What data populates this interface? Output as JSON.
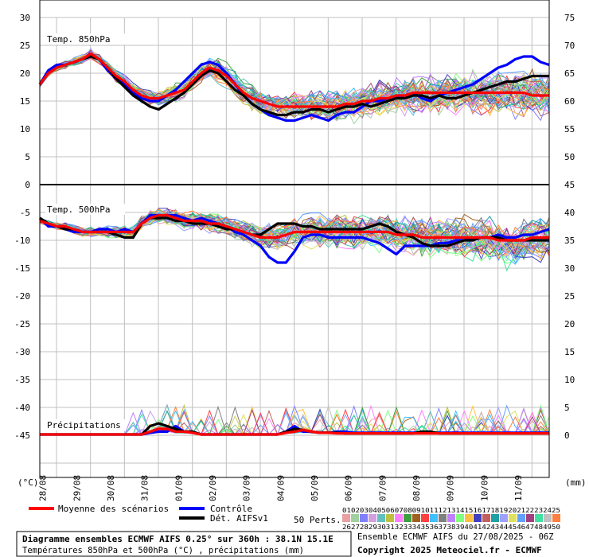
{
  "chart_data": {
    "type": "line",
    "left_axis": {
      "unit": "(°C)",
      "range": [
        -50,
        30
      ],
      "ticks": [
        "30",
        "25",
        "20",
        "15",
        "10",
        "5",
        "0",
        "-5",
        "-10",
        "-15",
        "-20",
        "-25",
        "-30",
        "-35",
        "-40",
        "-45"
      ]
    },
    "right_axis": {
      "unit": "(mm)",
      "upper_ticks": [
        "75",
        "70",
        "65",
        "60",
        "55",
        "50"
      ],
      "lower_ticks": [
        "45",
        "40",
        "35",
        "30",
        "25",
        "20",
        "15",
        "10",
        "5",
        "0"
      ]
    },
    "x_ticks": [
      "28/08",
      "29/08",
      "30/08",
      "31/08",
      "01/09",
      "02/09",
      "03/09",
      "04/09",
      "05/09",
      "06/09",
      "07/09",
      "08/09",
      "09/09",
      "10/09",
      "11/09"
    ],
    "panel_labels": {
      "t850": "Temp. 850hPa",
      "t500": "Temp. 500hPa",
      "precip": "Précipitations"
    },
    "x_hours": [
      0,
      6,
      12,
      18,
      24,
      30,
      36,
      42,
      48,
      54,
      60,
      66,
      72,
      78,
      84,
      90,
      96,
      102,
      108,
      114,
      120,
      126,
      132,
      138,
      144,
      150,
      156,
      162,
      168,
      174,
      180,
      186,
      192,
      198,
      204,
      210,
      216,
      222,
      228,
      234,
      240,
      246,
      252,
      258,
      264,
      270,
      276,
      282,
      288,
      294,
      300,
      306,
      312,
      318,
      324,
      330,
      336,
      342,
      348,
      354,
      360
    ],
    "series": [
      {
        "name": "Moyenne des scénarios",
        "panel": "t850",
        "color": "#ff0000",
        "values": [
          18,
          20,
          21,
          21.5,
          22,
          22.5,
          23.5,
          22.5,
          21,
          19.5,
          18.5,
          17,
          16,
          15.5,
          15.5,
          16,
          16.5,
          17,
          18.5,
          20,
          21,
          20.5,
          19.5,
          18,
          16.5,
          15.5,
          15,
          14.5,
          14,
          14,
          14,
          14,
          14,
          14,
          14,
          14,
          14.5,
          14.5,
          15,
          15,
          15.5,
          15.5,
          16,
          16,
          16.5,
          16.5,
          16.5,
          16.5,
          16.5,
          16.5,
          16.5,
          16.5,
          16.5,
          16.5,
          16.5,
          16.5,
          16.5,
          16.5,
          16,
          16,
          16
        ]
      },
      {
        "name": "Contrôle",
        "panel": "t850",
        "color": "#0000ff",
        "values": [
          18,
          20.5,
          21.5,
          21.5,
          22,
          22.5,
          23.5,
          22.5,
          20.5,
          19,
          18,
          16.5,
          15.5,
          15,
          15,
          16,
          17,
          18.5,
          20,
          21.5,
          22,
          21.5,
          20,
          18,
          16,
          14.5,
          13.5,
          12.5,
          12,
          11.5,
          11.5,
          12,
          12.5,
          12,
          11.5,
          12.5,
          13,
          13,
          14,
          15,
          15,
          15.5,
          15.5,
          16,
          16.5,
          15.5,
          15,
          16,
          16.5,
          17,
          17.5,
          18,
          19,
          20,
          21,
          21.5,
          22.5,
          23,
          23,
          22,
          21.5
        ]
      },
      {
        "name": "Dét. AIFSv1",
        "panel": "t850",
        "color": "#000000",
        "values": [
          18,
          20,
          21,
          21.5,
          22,
          22.5,
          23,
          22.5,
          21,
          19,
          17.5,
          16,
          15,
          14,
          13.5,
          14.5,
          15.5,
          16.5,
          18,
          19.5,
          20.5,
          20,
          18.5,
          17,
          16,
          14.5,
          13.5,
          13,
          12.5,
          12.5,
          13,
          13,
          13.5,
          13.5,
          13,
          13.5,
          14,
          14,
          14.5,
          14,
          14.5,
          15,
          15.5,
          15.5,
          16,
          16,
          15.5,
          16,
          15.5,
          15.5,
          16,
          16.5,
          17,
          17.5,
          18,
          18.5,
          18.5,
          19,
          19.5,
          19.5,
          19.5
        ]
      },
      {
        "name": "Moyenne des scénarios",
        "panel": "t500",
        "color": "#ff0000",
        "values": [
          -6.5,
          -7,
          -7.5,
          -7.5,
          -8,
          -8.5,
          -8.5,
          -8.5,
          -8.5,
          -8.5,
          -8.5,
          -8.5,
          -7,
          -6,
          -5.5,
          -5.5,
          -6,
          -6.5,
          -6.5,
          -6.5,
          -7,
          -7,
          -7.5,
          -8,
          -8.5,
          -9,
          -9.5,
          -9.5,
          -9.5,
          -9,
          -8.5,
          -8.5,
          -8.5,
          -8.5,
          -8.5,
          -8.5,
          -8.5,
          -8.5,
          -8.5,
          -8.5,
          -8.5,
          -8.5,
          -9,
          -9,
          -9,
          -9.5,
          -9.5,
          -9.5,
          -9.5,
          -9.5,
          -9.5,
          -9.5,
          -9.5,
          -9.5,
          -10,
          -10,
          -10,
          -10,
          -9.5,
          -9.5,
          -9.5
        ]
      },
      {
        "name": "Contrôle",
        "panel": "t500",
        "color": "#0000ff",
        "values": [
          -6,
          -7.5,
          -7.5,
          -8,
          -8.5,
          -8.5,
          -8.5,
          -8,
          -8,
          -8.5,
          -8,
          -8.5,
          -7,
          -5.5,
          -5.5,
          -5.5,
          -5.5,
          -6,
          -6.5,
          -6,
          -6.5,
          -7,
          -7.5,
          -8.5,
          -9,
          -10,
          -11,
          -13,
          -14,
          -14,
          -12,
          -9.5,
          -9,
          -9,
          -9.5,
          -9.5,
          -9.5,
          -9.5,
          -9.5,
          -10,
          -10.5,
          -11.5,
          -12.5,
          -11,
          -11,
          -11,
          -11,
          -10.5,
          -10.5,
          -10,
          -10,
          -9.5,
          -9.5,
          -9.5,
          -9,
          -9.5,
          -9.5,
          -9,
          -9,
          -8.5,
          -8
        ]
      },
      {
        "name": "Dét. AIFSv1",
        "panel": "t500",
        "color": "#000000",
        "values": [
          -6,
          -7,
          -7.5,
          -8,
          -8,
          -8.5,
          -8.5,
          -8.5,
          -8.5,
          -9,
          -9.5,
          -9.5,
          -7,
          -6,
          -6,
          -6,
          -6.5,
          -6.5,
          -7,
          -7,
          -7,
          -7.5,
          -8,
          -8,
          -8.5,
          -9,
          -9,
          -8,
          -7,
          -7,
          -7,
          -7.5,
          -7.5,
          -8,
          -8,
          -8,
          -8,
          -8,
          -8,
          -7.5,
          -7,
          -7.5,
          -8.5,
          -9,
          -9.5,
          -10.5,
          -11,
          -11,
          -11,
          -10.5,
          -10,
          -10,
          -9.5,
          -9.5,
          -9.5,
          -10,
          -10,
          -10,
          -10,
          -10,
          -10
        ]
      },
      {
        "name": "Moyenne des scénarios",
        "panel": "precip",
        "color": "#ff0000",
        "values": [
          0,
          0,
          0,
          0,
          0,
          0,
          0,
          0,
          0,
          0,
          0,
          0,
          0,
          0.5,
          1,
          1,
          0.5,
          0.5,
          0.3,
          0,
          0,
          0,
          0,
          0,
          0,
          0,
          0,
          0,
          0,
          0.3,
          0.5,
          0.8,
          0.5,
          0.3,
          0.3,
          0.2,
          0.2,
          0.2,
          0.2,
          0.2,
          0.2,
          0.2,
          0.2,
          0.2,
          0.2,
          0.2,
          0.2,
          0.2,
          0.2,
          0.2,
          0.2,
          0.2,
          0.2,
          0.2,
          0.2,
          0.2,
          0.2,
          0.2,
          0.2,
          0.2,
          0.2
        ]
      },
      {
        "name": "Contrôle",
        "panel": "precip",
        "color": "#0000ff",
        "values": [
          0,
          0,
          0,
          0,
          0,
          0,
          0,
          0,
          0,
          0,
          0,
          0,
          0,
          0.3,
          0.5,
          0.5,
          1.5,
          0.5,
          0.5,
          0,
          0,
          0,
          0,
          0,
          0,
          0,
          0,
          0,
          0,
          0.5,
          1.5,
          0.5,
          0.5,
          0.3,
          0.3,
          0.5,
          0.5,
          0.3,
          0.3,
          0.3,
          0.3,
          0.3,
          0.3,
          0.3,
          0.3,
          0.3,
          0.3,
          0.3,
          0.3,
          0.3,
          0.3,
          0.3,
          0.3,
          0.3,
          0.3,
          0.3,
          0.3,
          0.3,
          0.3,
          0.3,
          0.3
        ]
      },
      {
        "name": "Dét. AIFSv1",
        "panel": "precip",
        "color": "#000000",
        "values": [
          0,
          0,
          0,
          0,
          0,
          0,
          0,
          0,
          0,
          0,
          0,
          0,
          0,
          1.5,
          2,
          1.5,
          1,
          0.5,
          0.5,
          0,
          0,
          0,
          0,
          0,
          0,
          0,
          0,
          0,
          0,
          0.5,
          1,
          0.8,
          0.5,
          0.3,
          0.3,
          0.3,
          0.2,
          0.2,
          0.2,
          0.2,
          0.2,
          0.2,
          0.2,
          0.2,
          0.2,
          0.5,
          0.5,
          0.2,
          0.2,
          0.2,
          0.2,
          0.2,
          0.2,
          0.2,
          0.2,
          0.2,
          0.2,
          0.2,
          0.2,
          0.2,
          0.2
        ]
      }
    ],
    "member_colors": [
      "#e8a0a0",
      "#a0d0a0",
      "#8080ff",
      "#d0a0e0",
      "#60c0c0",
      "#c0c040",
      "#ff80ff",
      "#40a040",
      "#a06020",
      "#ff4040",
      "#40c0ff",
      "#808080",
      "#c080ff",
      "#80ff80",
      "#ffc040",
      "#4040c0",
      "#c06060",
      "#20a0a0",
      "#a0a0ff",
      "#e0e060",
      "#60a0ff",
      "#a04080",
      "#40e0a0",
      "#c0c0c0",
      "#ff8040"
    ],
    "grid": true
  },
  "legend": {
    "mean_label": "Moyenne des scénarios",
    "control_label": "Contrôle",
    "det_label": "Dét. AIFSv1",
    "perts_label": "50 Perts.",
    "member_row1": "01020304050607080910111213141516171819202122232425",
    "member_row2": "26272829303132333435363738394041424344454647484950",
    "mean_color": "#ff0000",
    "control_color": "#0000ff",
    "det_color": "#000000"
  },
  "footer": {
    "title": "Diagramme ensembles ECMWF AIFS 0.25° sur 360h : 38.1N 15.1E",
    "subtitle": "Températures 850hPa et 500hPa (°C) , précipitations (mm)",
    "run_info": "Ensemble ECMWF AIFS du 27/08/2025 - 06Z",
    "copyright": "Copyright 2025 Meteociel.fr - ECMWF"
  }
}
